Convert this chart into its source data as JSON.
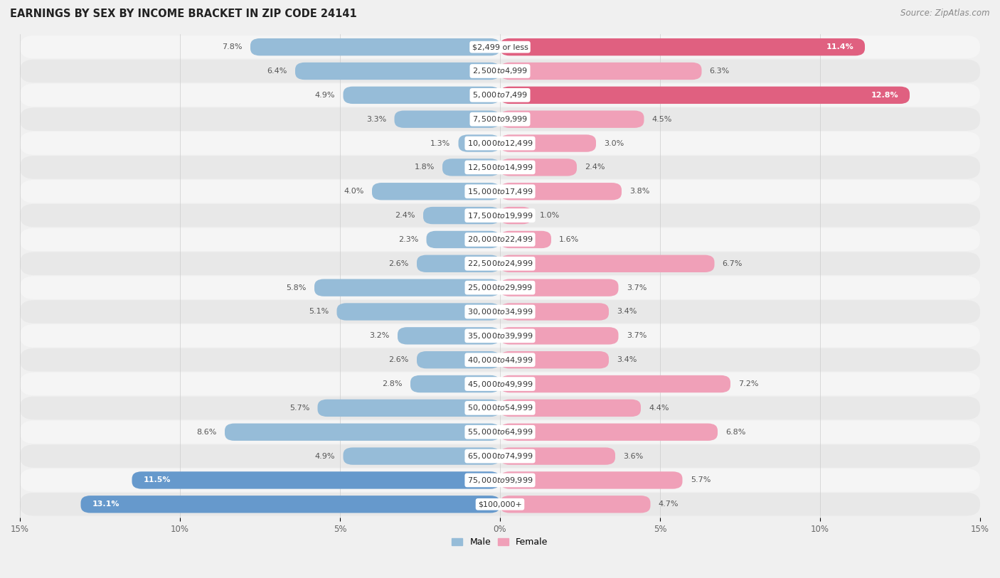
{
  "title": "EARNINGS BY SEX BY INCOME BRACKET IN ZIP CODE 24141",
  "source": "Source: ZipAtlas.com",
  "categories": [
    "$2,499 or less",
    "$2,500 to $4,999",
    "$5,000 to $7,499",
    "$7,500 to $9,999",
    "$10,000 to $12,499",
    "$12,500 to $14,999",
    "$15,000 to $17,499",
    "$17,500 to $19,999",
    "$20,000 to $22,499",
    "$22,500 to $24,999",
    "$25,000 to $29,999",
    "$30,000 to $34,999",
    "$35,000 to $39,999",
    "$40,000 to $44,999",
    "$45,000 to $49,999",
    "$50,000 to $54,999",
    "$55,000 to $64,999",
    "$65,000 to $74,999",
    "$75,000 to $99,999",
    "$100,000+"
  ],
  "male_values": [
    7.8,
    6.4,
    4.9,
    3.3,
    1.3,
    1.8,
    4.0,
    2.4,
    2.3,
    2.6,
    5.8,
    5.1,
    3.2,
    2.6,
    2.8,
    5.7,
    8.6,
    4.9,
    11.5,
    13.1
  ],
  "female_values": [
    11.4,
    6.3,
    12.8,
    4.5,
    3.0,
    2.4,
    3.8,
    1.0,
    1.6,
    6.7,
    3.7,
    3.4,
    3.7,
    3.4,
    7.2,
    4.4,
    6.8,
    3.6,
    5.7,
    4.7
  ],
  "male_color": "#96bcd8",
  "female_color": "#f0a0b8",
  "male_highlight_indices": [
    18,
    19
  ],
  "female_highlight_indices": [
    0,
    2
  ],
  "male_highlight_color": "#6699cc",
  "female_highlight_color": "#e06080",
  "male_label": "Male",
  "female_label": "Female",
  "xlim": 15.0,
  "row_color_even": "#f5f5f5",
  "row_color_odd": "#e8e8e8",
  "background_color": "#f0f0f0",
  "title_fontsize": 10.5,
  "source_fontsize": 8.5,
  "label_fontsize": 8.0,
  "value_fontsize": 8.0
}
